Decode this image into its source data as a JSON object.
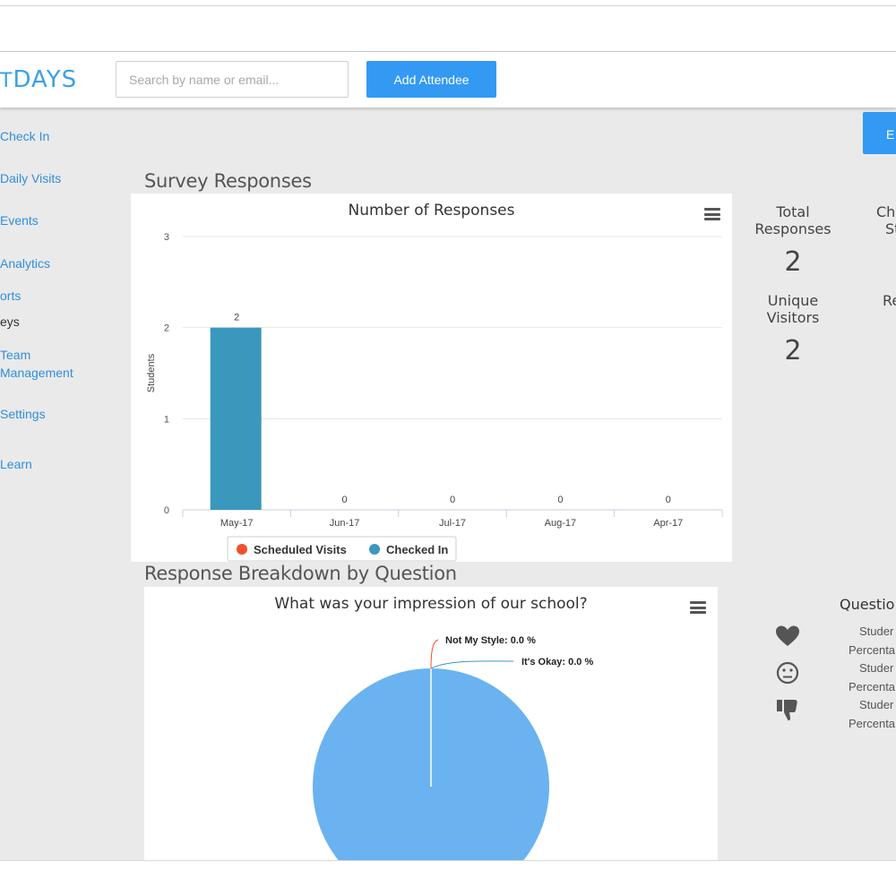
{
  "app": {
    "logo_main": "T",
    "logo_accent": "DAYS",
    "search_placeholder": "Search by name or email...",
    "add_attendee_label": "Add Attendee",
    "export_label": "E"
  },
  "sidebar": {
    "items": [
      {
        "label": "Check In",
        "active": false
      },
      {
        "label": "Daily Visits",
        "active": false
      },
      {
        "label": "Events",
        "active": false
      },
      {
        "label": "Analytics",
        "active": false
      },
      {
        "label": "orts",
        "active": false
      },
      {
        "label": "eys",
        "active": true
      },
      {
        "label": "Team",
        "active": false
      },
      {
        "label": "Management",
        "active": false
      },
      {
        "label": "Settings",
        "active": false
      },
      {
        "label": "Learn",
        "active": false
      }
    ]
  },
  "survey": {
    "section_title": "Survey Responses",
    "stats": {
      "total_label_1": "Total",
      "total_label_2": "Responses",
      "total_value": "2",
      "unique_label_1": "Unique",
      "unique_label_2": "Visitors",
      "unique_value": "2",
      "clipped_label_1": "Ch",
      "clipped_label_2": "St",
      "clipped_label_3": "Re"
    }
  },
  "breakdown": {
    "section_title": "Response Breakdown by Question",
    "question_header": "Questio",
    "rows": [
      {
        "line1": "Studer",
        "line2": "Percenta"
      },
      {
        "line1": "Studer",
        "line2": "Percenta"
      },
      {
        "line1": "Studer",
        "line2": "Percenta"
      }
    ]
  },
  "colors": {
    "accent": "#3399f3",
    "bar": "#3a98bd",
    "scheduled": "#f0512d",
    "pie": "#6ab3f0"
  },
  "chart_data": [
    {
      "type": "bar",
      "title": "Number of Responses",
      "ylabel": "Students",
      "xlabel": "",
      "categories": [
        "May-17",
        "Jun-17",
        "Jul-17",
        "Aug-17",
        "Apr-17"
      ],
      "series": [
        {
          "name": "Scheduled Visits",
          "values": [
            0,
            0,
            0,
            0,
            0
          ]
        },
        {
          "name": "Checked In",
          "values": [
            2,
            0,
            0,
            0,
            0
          ]
        }
      ],
      "data_labels": [
        "2",
        "0",
        "0",
        "0",
        "0"
      ],
      "yticks": [
        "0",
        "1",
        "2",
        "3"
      ],
      "ylim": [
        0,
        3
      ],
      "grid": true,
      "legend": "bottom-center"
    },
    {
      "type": "pie",
      "title": "What was your impression of our school?",
      "slices": [
        {
          "label": "Not My Style: 0.0 %",
          "value": 0
        },
        {
          "label": "It's Okay: 0.0 %",
          "value": 0
        },
        {
          "label": "Love it",
          "value": 100
        }
      ]
    }
  ]
}
